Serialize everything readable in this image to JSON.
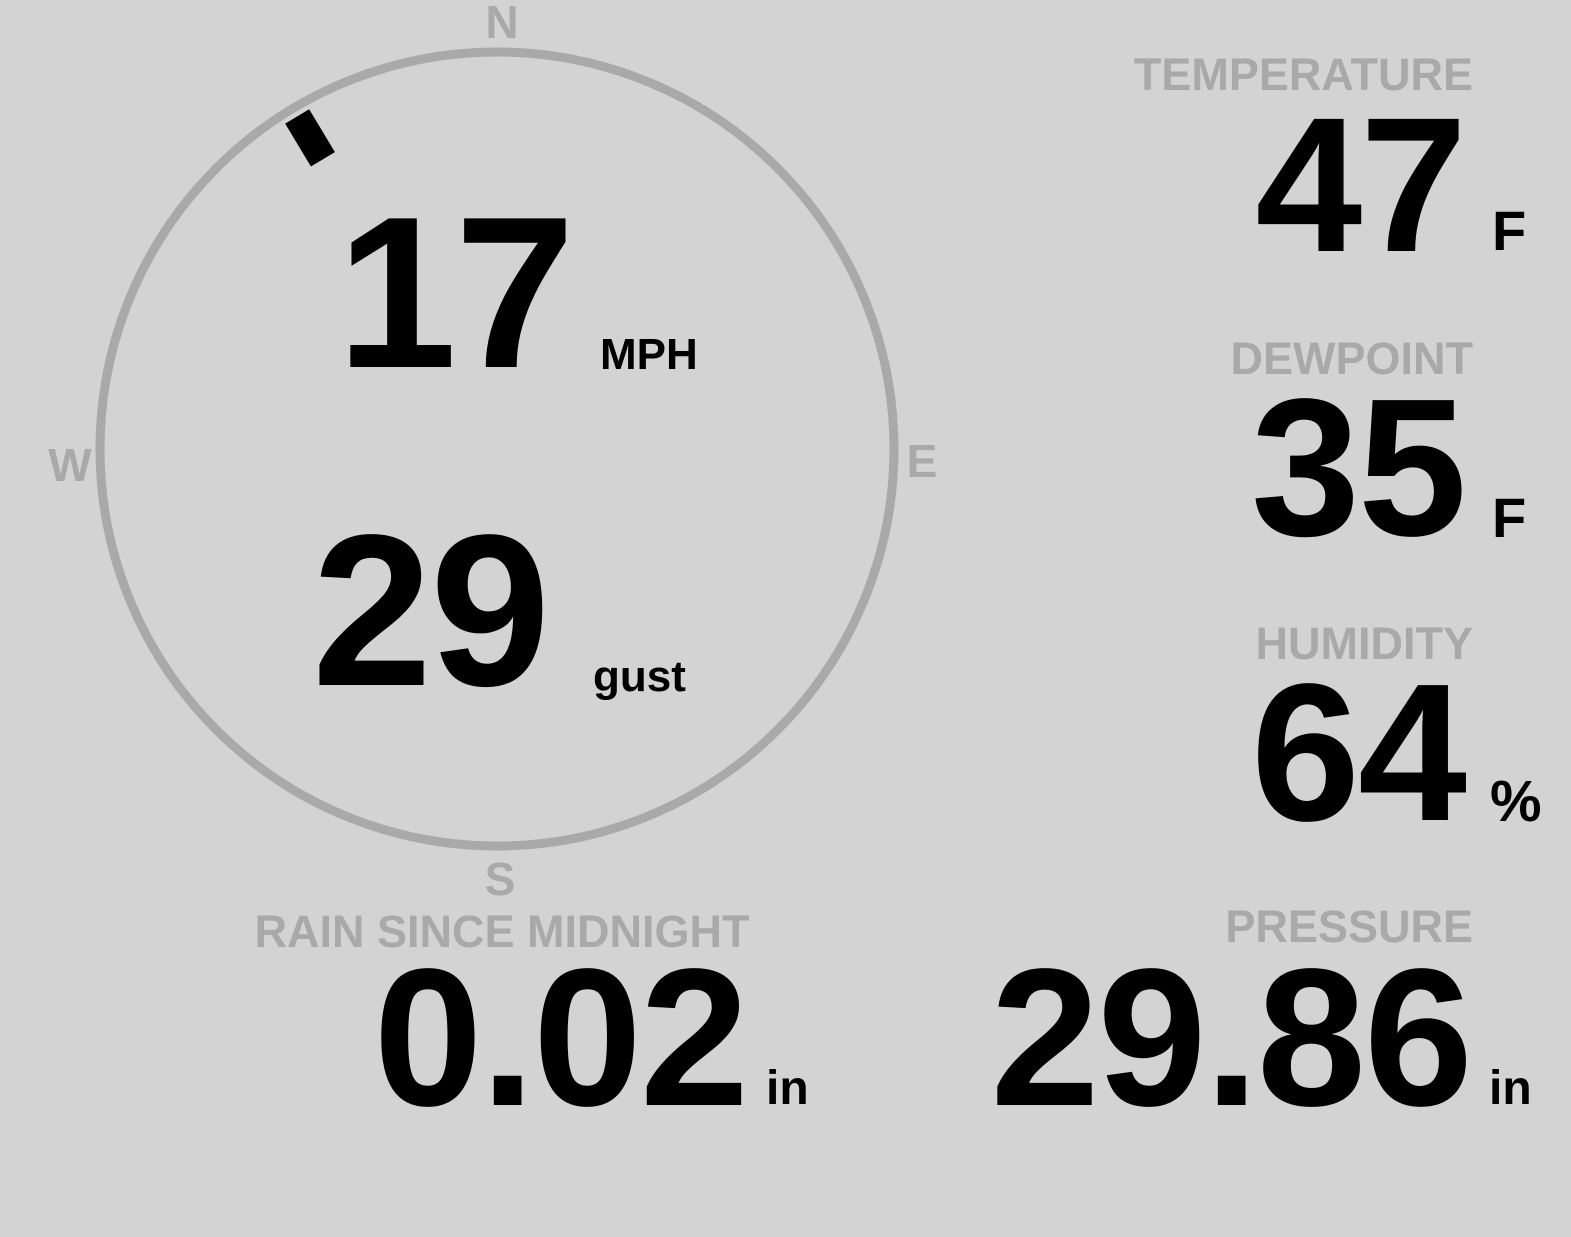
{
  "compass": {
    "north": "N",
    "east": "E",
    "south": "S",
    "west": "W",
    "wind_direction_degrees": 329,
    "ring_color": "#a9a9a9"
  },
  "wind": {
    "speed": "17",
    "speed_unit": "MPH",
    "gust": "29",
    "gust_label": "gust"
  },
  "temperature": {
    "label": "TEMPERATURE",
    "value": "47",
    "unit": "F"
  },
  "dewpoint": {
    "label": "DEWPOINT",
    "value": "35",
    "unit": "F"
  },
  "humidity": {
    "label": "HUMIDITY",
    "value": "64",
    "unit": "%"
  },
  "rain": {
    "label": "RAIN SINCE MIDNIGHT",
    "value": "0.02",
    "unit": "in"
  },
  "pressure": {
    "label": "PRESSURE",
    "value": "29.86",
    "unit": "in"
  },
  "colors": {
    "background": "#d3d3d3",
    "label": "#a9a9a9",
    "value": "#000000"
  }
}
